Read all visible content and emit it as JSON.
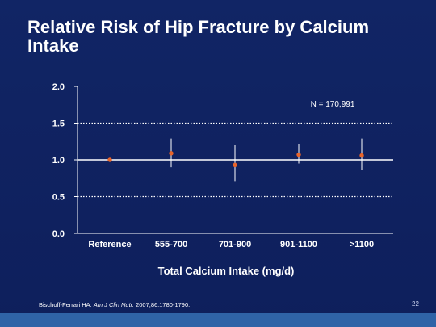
{
  "slide": {
    "title": "Relative Risk of Hip Fracture by Calcium Intake",
    "citation_authors": "Bischoff-Ferrari HA.",
    "citation_journal": "Am J Clin Nutr.",
    "citation_details": "2007;86:1780-1790.",
    "page_number": "22",
    "colors": {
      "background": "#0f2160",
      "accent_bar": "#2f63a7",
      "point": "#e8642a"
    }
  },
  "chart_data": {
    "type": "scatter",
    "title": "",
    "xlabel": "Total Calcium Intake (mg/d)",
    "ylabel": "",
    "annotation": "N = 170,991",
    "categories": [
      "Reference",
      "555-700",
      "701-900",
      "901-1100",
      ">1100"
    ],
    "y_ticks": [
      "0.0",
      "0.5",
      "1.0",
      "1.5",
      "2.0"
    ],
    "ylim": [
      0,
      2
    ],
    "reference_line": 1.0,
    "dotted_gridlines": [
      0.5,
      1.5
    ],
    "series": [
      {
        "points": [
          {
            "x": "Reference",
            "y": 1.0,
            "ci_low": 1.0,
            "ci_high": 1.0
          },
          {
            "x": "555-700",
            "y": 1.09,
            "ci_low": 0.9,
            "ci_high": 1.29
          },
          {
            "x": "701-900",
            "y": 0.93,
            "ci_low": 0.71,
            "ci_high": 1.2
          },
          {
            "x": "901-1100",
            "y": 1.07,
            "ci_low": 0.95,
            "ci_high": 1.22
          },
          {
            "x": ">1100",
            "y": 1.06,
            "ci_low": 0.86,
            "ci_high": 1.29
          }
        ]
      }
    ]
  }
}
